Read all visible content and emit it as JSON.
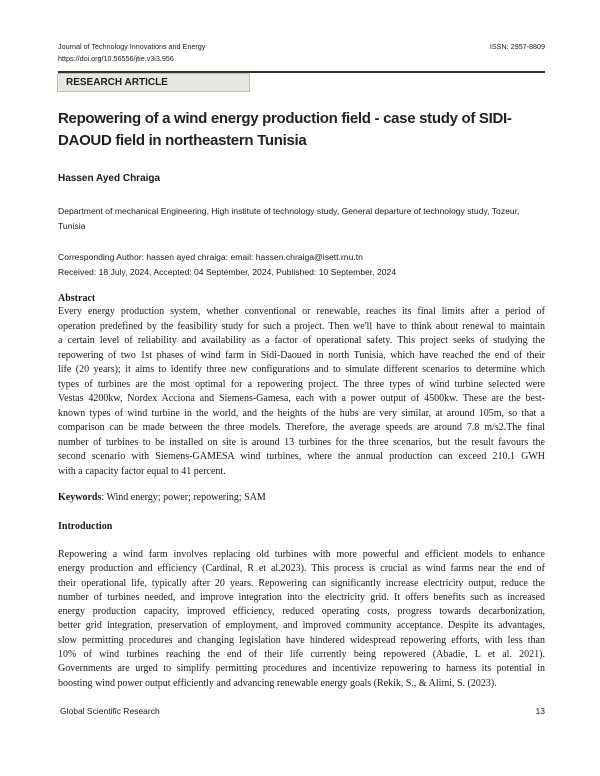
{
  "header": {
    "journal": "Journal of Technology Innovations and Energy",
    "doi": "https://doi.org/10.56556/jtie.v3i3.956",
    "issn": "ISSN: 2957-8809"
  },
  "article_type": "RESEARCH ARTICLE",
  "title": "Repowering of a wind energy production field - case study of SIDI-DAOUD field in northeastern Tunisia",
  "author": "Hassen Ayed Chraiga",
  "affiliation": "Department of mechanical Engineering, High institute of technology study, General departure of technology study, Tozeur, Tunisia",
  "corresponding": "Corresponding Author: hassen ayed chraiga: email: hassen.chraiga@isett.rnu.tn",
  "dates": "Received: 18 July, 2024, Accepted: 04 September, 2024, Published: 10 September, 2024",
  "abstract": {
    "heading": "Abstract",
    "lines": [
      "Every energy production system, whether conventional or renewable, reaches its final limits after a period of",
      "operation predefined by the feasibility study for such a project. Then we'll have to think about renewal to maintain",
      "a certain level of reliability and availability as a factor of operational safety. This project seeks of studying the",
      "repowering of two 1st phases of wind farm in Sidi-Daoued in north Tunisia, which have reached the end of their",
      "life (20 years); it aims to identify three new configurations and to simulate different scenarios to determine which",
      "types of turbines are the most optimal for a repowering project. The three types of wind turbine selected were",
      "Vestas 4200kw, Nordex Acciona and Siemens-Gamesa, each with a power output of 4500kw. These are the best-",
      "known types of wind turbine in the world, and the heights of the hubs are very similar, at around 105m, so that a",
      "comparison can be made between the three models. Therefore, the average speeds are around 7.8 m/s2.The final",
      "number of turbines to be installed on site is around 13 turbines for the three scenarios, but the result favours the",
      "second scenario with Siemens-GAMESA wind turbines, where the annual production can exceed 210.1 GWH",
      "with a capacity factor equal to 41 percent."
    ]
  },
  "keywords": {
    "label": "Keywords",
    "text": ": Wind energy; power; repowering; SAM"
  },
  "introduction": {
    "heading": "Introduction",
    "lines": [
      "Repowering a wind farm involves replacing old turbines with more powerful and efficient models to enhance",
      "energy production and efficiency (Cardinal, R et al.2023). This process is crucial as wind farms near the end of",
      "their operational life, typically after 20 years. Repowering can significantly increase electricity output, reduce the",
      "number of turbines needed, and improve integration into the electricity grid. It offers benefits such as increased",
      "energy production capacity, improved efficiency, reduced operating costs, progress towards decarbonization,",
      "better grid integration, preservation of employment, and improved community acceptance. Despite its advantages,",
      "slow permitting procedures and changing legislation have hindered widespread repowering efforts, with less than",
      "10% of wind turbines reaching the end of their life currently being repowered (Abadie, L et al. 2021).",
      "Governments are urged to simplify permitting procedures and incentivize repowering to harness its potential in",
      "boosting wind power output efficiently and advancing renewable energy goals (Rekik, S., & Alimi, S. (2023)."
    ]
  },
  "footer": {
    "publisher": "Global Scientific Research",
    "page": "13"
  }
}
